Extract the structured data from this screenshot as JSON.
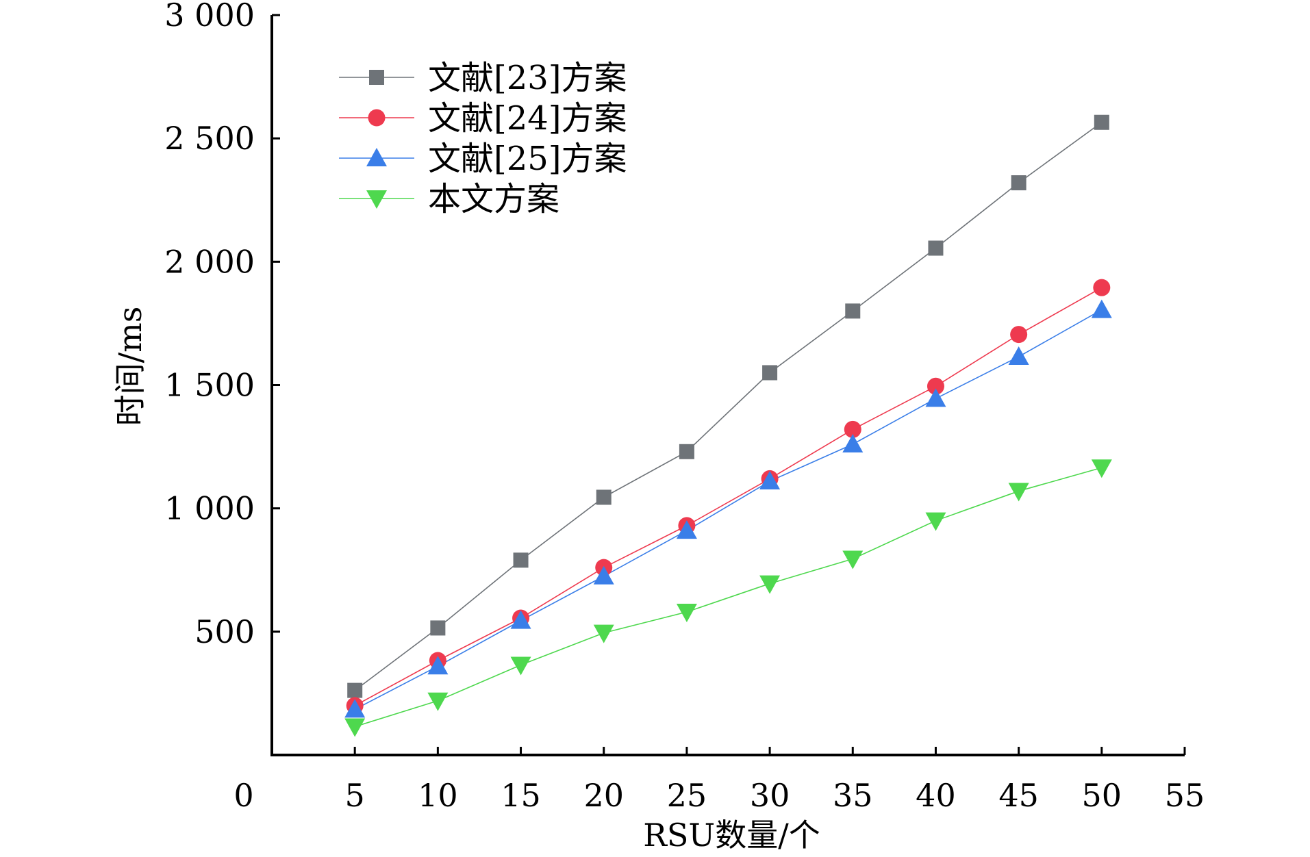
{
  "chart_data": {
    "type": "line",
    "xlabel": "RSU数量/个",
    "ylabel": "时间/ms",
    "xlim": [
      0,
      55
    ],
    "ylim": [
      0,
      3000
    ],
    "xticks": [
      0,
      5,
      10,
      15,
      20,
      25,
      30,
      35,
      40,
      45,
      50,
      55
    ],
    "xtick_labels": [
      "0",
      "5",
      "10",
      "15",
      "20",
      "25",
      "30",
      "35",
      "40",
      "45",
      "50",
      "55"
    ],
    "yticks": [
      500,
      1000,
      1500,
      2000,
      2500,
      3000
    ],
    "ytick_labels": [
      "500",
      "1 000",
      "1 500",
      "2 000",
      "2 500",
      "3 000"
    ],
    "grid": false,
    "legend_position": "top-left",
    "x": [
      5,
      10,
      15,
      20,
      25,
      30,
      35,
      40,
      45,
      50
    ],
    "series": [
      {
        "name": "文献[23]方案",
        "color": "#6e7378",
        "marker": "square",
        "values": [
          262,
          515,
          790,
          1045,
          1230,
          1550,
          1800,
          2055,
          2320,
          2565
        ]
      },
      {
        "name": "文献[24]方案",
        "color": "#ee3a4f",
        "marker": "circle",
        "values": [
          200,
          383,
          555,
          760,
          930,
          1120,
          1320,
          1495,
          1705,
          1895
        ]
      },
      {
        "name": "文献[25]方案",
        "color": "#3a7ee8",
        "marker": "triangle-up",
        "values": [
          185,
          360,
          545,
          725,
          910,
          1110,
          1260,
          1445,
          1615,
          1805
        ]
      },
      {
        "name": "本文方案",
        "color": "#4ed84e",
        "marker": "triangle-down",
        "values": [
          115,
          220,
          365,
          495,
          580,
          695,
          795,
          950,
          1070,
          1165
        ]
      }
    ]
  }
}
